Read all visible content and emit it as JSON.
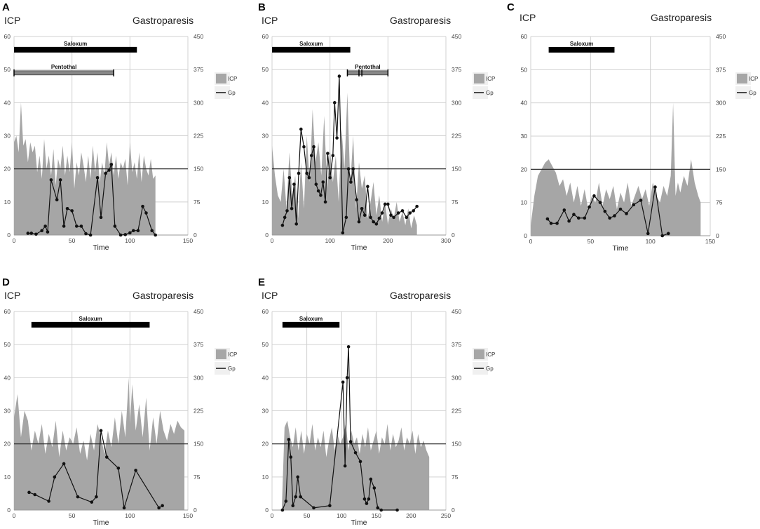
{
  "colors": {
    "area": "#a6a6a6",
    "line": "#111111",
    "grid": "#d0d0d0",
    "threshold": "#222222",
    "bar_dark": "#000000",
    "bar_light": "#888888"
  },
  "chart_data": [
    {
      "panel": "A",
      "type": "area+line",
      "left_title": "ICP",
      "right_title": "Gastroparesis",
      "xlabel": "Time",
      "xlim": [
        0,
        150
      ],
      "xticks": [
        0,
        50,
        100,
        150
      ],
      "ylim_left": [
        0,
        60
      ],
      "yticks_left": [
        0,
        10,
        20,
        30,
        40,
        50,
        60
      ],
      "ylim_right": [
        0,
        450
      ],
      "yticks_right": [
        0,
        75,
        150,
        225,
        300,
        375,
        450
      ],
      "threshold_left": 20,
      "legend": [
        {
          "label": "ICP",
          "kind": "area"
        },
        {
          "label": "Gp",
          "kind": "line"
        }
      ],
      "bars": [
        {
          "label": "Saloxum",
          "start": 0,
          "end": 106,
          "level": 56,
          "style": "dark",
          "ticks": []
        },
        {
          "label": "Pentothal",
          "start": 0,
          "end": 86,
          "level": 49,
          "style": "light",
          "ticks": [
            0,
            86
          ]
        }
      ],
      "icp_area": {
        "x": [
          0,
          2,
          4,
          6,
          8,
          10,
          12,
          14,
          16,
          18,
          20,
          22,
          24,
          26,
          28,
          30,
          32,
          34,
          36,
          38,
          40,
          42,
          44,
          46,
          48,
          50,
          52,
          54,
          56,
          58,
          60,
          62,
          64,
          66,
          68,
          70,
          72,
          74,
          76,
          78,
          80,
          82,
          84,
          86,
          88,
          90,
          92,
          94,
          96,
          98,
          100,
          102,
          104,
          106,
          108,
          110,
          112,
          114,
          116,
          118,
          120,
          122
        ],
        "y": [
          28,
          30,
          25,
          40,
          27,
          29,
          22,
          28,
          25,
          27,
          19,
          24,
          17,
          29,
          20,
          24,
          18,
          26,
          15,
          23,
          20,
          27,
          18,
          24,
          19,
          28,
          14,
          22,
          18,
          25,
          21,
          16,
          24,
          17,
          27,
          19,
          25,
          16,
          22,
          18,
          28,
          21,
          25,
          18,
          24,
          17,
          22,
          20,
          23,
          15,
          28,
          19,
          22,
          17,
          25,
          16,
          24,
          20,
          18,
          23,
          17,
          18
        ]
      },
      "gp_line": {
        "x": [
          12,
          15,
          19,
          24,
          27,
          29,
          32,
          37,
          40,
          43,
          46,
          50,
          54,
          58,
          62,
          66,
          72,
          75,
          79,
          82,
          84,
          87,
          92,
          96,
          100,
          103,
          107,
          111,
          114,
          119,
          122
        ],
        "y": [
          4,
          4,
          2,
          10,
          20,
          7,
          125,
          80,
          125,
          20,
          60,
          55,
          20,
          20,
          3,
          0,
          130,
          40,
          140,
          147,
          160,
          20,
          0,
          1,
          5,
          10,
          10,
          65,
          50,
          10,
          0
        ]
      }
    },
    {
      "panel": "B",
      "type": "area+line",
      "left_title": "ICP",
      "right_title": "Gastroparesis",
      "xlabel": "Time",
      "xlim": [
        0,
        300
      ],
      "xticks": [
        0,
        100,
        200,
        300
      ],
      "ylim_left": [
        0,
        60
      ],
      "yticks_left": [
        0,
        10,
        20,
        30,
        40,
        50,
        60
      ],
      "ylim_right": [
        0,
        450
      ],
      "yticks_right": [
        0,
        75,
        150,
        225,
        300,
        375,
        450
      ],
      "threshold_left": 20,
      "legend": [
        {
          "label": "ICP",
          "kind": "area"
        },
        {
          "label": "Gp",
          "kind": "line"
        }
      ],
      "bars": [
        {
          "label": "Saloxum",
          "start": 0,
          "end": 135,
          "level": 56,
          "style": "dark",
          "ticks": []
        },
        {
          "label": "Pentothal",
          "start": 130,
          "end": 200,
          "level": 49,
          "style": "light",
          "ticks": [
            130,
            150,
            155,
            200
          ]
        }
      ],
      "icp_area": {
        "x": [
          0,
          5,
          10,
          15,
          20,
          25,
          30,
          35,
          40,
          45,
          50,
          55,
          60,
          65,
          70,
          75,
          80,
          85,
          90,
          95,
          100,
          105,
          110,
          115,
          120,
          125,
          130,
          135,
          140,
          145,
          150,
          155,
          160,
          165,
          170,
          175,
          180,
          185,
          190,
          195,
          200,
          205,
          210,
          215,
          220,
          225,
          230,
          235,
          240,
          245,
          250
        ],
        "y": [
          27,
          18,
          12,
          10,
          20,
          8,
          25,
          12,
          18,
          5,
          22,
          8,
          30,
          16,
          38,
          22,
          28,
          18,
          36,
          14,
          26,
          16,
          24,
          10,
          32,
          20,
          43,
          15,
          30,
          8,
          22,
          14,
          18,
          5,
          10,
          16,
          6,
          12,
          4,
          10,
          3,
          8,
          5,
          10,
          4,
          7,
          3,
          8,
          2,
          6,
          3
        ]
      },
      "gp_line": {
        "x": [
          18,
          22,
          26,
          30,
          34,
          38,
          42,
          46,
          50,
          55,
          60,
          64,
          68,
          72,
          76,
          80,
          84,
          88,
          92,
          96,
          100,
          105,
          108,
          112,
          116,
          122,
          128,
          132,
          136,
          140,
          146,
          150,
          155,
          160,
          165,
          170,
          175,
          180,
          185,
          190,
          195,
          200,
          205,
          210,
          218,
          225,
          232,
          238,
          244,
          250
        ],
        "y": [
          22,
          40,
          55,
          130,
          60,
          115,
          25,
          140,
          240,
          200,
          140,
          130,
          180,
          200,
          115,
          100,
          90,
          120,
          75,
          185,
          130,
          180,
          300,
          220,
          360,
          5,
          40,
          150,
          120,
          150,
          80,
          30,
          60,
          45,
          110,
          40,
          30,
          25,
          38,
          50,
          70,
          70,
          45,
          40,
          50,
          55,
          40,
          50,
          55,
          65
        ]
      }
    },
    {
      "panel": "C",
      "type": "area+line",
      "left_title": "ICP",
      "right_title": "Gastroparesis",
      "xlabel": "Time",
      "xlim": [
        0,
        150
      ],
      "xticks": [
        0,
        50,
        100,
        150
      ],
      "ylim_left": [
        0,
        60
      ],
      "yticks_left": [
        0,
        10,
        20,
        30,
        40,
        50,
        60
      ],
      "ylim_right": [
        0,
        450
      ],
      "yticks_right": [
        0,
        75,
        150,
        225,
        300,
        375,
        450
      ],
      "threshold_left": 20,
      "legend": [
        {
          "label": "ICP",
          "kind": "area"
        },
        {
          "label": "Gp",
          "kind": "line"
        }
      ],
      "bars": [
        {
          "label": "Saloxum",
          "start": 15,
          "end": 70,
          "level": 56,
          "style": "dark",
          "ticks": []
        }
      ],
      "icp_area": {
        "x": [
          0,
          3,
          6,
          9,
          12,
          15,
          18,
          21,
          24,
          27,
          30,
          33,
          36,
          39,
          42,
          45,
          48,
          51,
          54,
          57,
          60,
          63,
          66,
          69,
          72,
          75,
          78,
          81,
          84,
          87,
          90,
          93,
          96,
          99,
          102,
          105,
          108,
          111,
          114,
          117,
          119,
          121,
          123,
          125,
          128,
          131,
          134,
          137,
          140,
          142
        ],
        "y": [
          3,
          12,
          18,
          20,
          22,
          23,
          21,
          19,
          15,
          17,
          12,
          16,
          10,
          15,
          9,
          14,
          8,
          12,
          10,
          16,
          9,
          14,
          11,
          15,
          8,
          13,
          10,
          16,
          9,
          12,
          15,
          11,
          14,
          9,
          16,
          12,
          10,
          15,
          12,
          18,
          40,
          12,
          16,
          13,
          18,
          15,
          23,
          16,
          12,
          10
        ]
      },
      "gp_line": {
        "x": [
          14,
          17,
          22,
          28,
          32,
          36,
          40,
          45,
          49,
          53,
          58,
          62,
          66,
          70,
          75,
          80,
          86,
          92,
          98,
          104,
          110,
          115
        ],
        "y": [
          38,
          28,
          28,
          58,
          33,
          48,
          40,
          40,
          65,
          90,
          75,
          55,
          40,
          45,
          60,
          50,
          70,
          80,
          5,
          110,
          0,
          5
        ]
      }
    },
    {
      "panel": "D",
      "type": "area+line",
      "left_title": "ICP",
      "right_title": "Gastroparesis",
      "xlabel": "Time",
      "xlim": [
        0,
        150
      ],
      "xticks": [
        0,
        50,
        100,
        150
      ],
      "ylim_left": [
        0,
        60
      ],
      "yticks_left": [
        0,
        10,
        20,
        30,
        40,
        50,
        60
      ],
      "ylim_right": [
        0,
        450
      ],
      "yticks_right": [
        0,
        75,
        150,
        225,
        300,
        375,
        450
      ],
      "threshold_left": 20,
      "legend": [
        {
          "label": "ICP",
          "kind": "area"
        },
        {
          "label": "Gp",
          "kind": "line"
        }
      ],
      "bars": [
        {
          "label": "Saloxum",
          "start": 15,
          "end": 117,
          "level": 56,
          "style": "dark",
          "ticks": []
        }
      ],
      "icp_area": {
        "x": [
          0,
          3,
          6,
          9,
          12,
          15,
          18,
          21,
          24,
          27,
          30,
          33,
          36,
          39,
          42,
          45,
          48,
          51,
          54,
          57,
          60,
          63,
          66,
          69,
          72,
          75,
          78,
          81,
          84,
          87,
          90,
          93,
          96,
          99,
          100,
          102,
          105,
          108,
          111,
          114,
          117,
          120,
          123,
          126,
          129,
          132,
          135,
          138,
          141,
          144,
          147
        ],
        "y": [
          28,
          35,
          22,
          30,
          27,
          18,
          24,
          20,
          26,
          17,
          23,
          19,
          27,
          16,
          24,
          18,
          22,
          20,
          25,
          17,
          21,
          15,
          23,
          18,
          26,
          22,
          17,
          24,
          19,
          28,
          20,
          30,
          22,
          40,
          26,
          38,
          24,
          32,
          22,
          34,
          18,
          28,
          20,
          30,
          24,
          21,
          26,
          23,
          27,
          25,
          24
        ]
      },
      "gp_line": {
        "x": [
          13,
          18,
          30,
          35,
          43,
          55,
          67,
          71,
          75,
          80,
          90,
          95,
          105,
          125,
          128
        ],
        "y": [
          40,
          35,
          20,
          75,
          105,
          30,
          18,
          30,
          180,
          120,
          95,
          5,
          90,
          5,
          10
        ]
      }
    },
    {
      "panel": "E",
      "type": "area+line",
      "left_title": "ICP",
      "right_title": "Gastroparesis",
      "xlabel": "Time",
      "xlim": [
        0,
        250
      ],
      "xticks": [
        0,
        50,
        100,
        150,
        200,
        250
      ],
      "ylim_left": [
        0,
        60
      ],
      "yticks_left": [
        0,
        10,
        20,
        30,
        40,
        50,
        60
      ],
      "ylim_right": [
        0,
        450
      ],
      "yticks_right": [
        0,
        75,
        150,
        225,
        300,
        375,
        450
      ],
      "threshold_left": 20,
      "legend": [
        {
          "label": "ICP",
          "kind": "area"
        },
        {
          "label": "Gp",
          "kind": "line"
        }
      ],
      "bars": [
        {
          "label": "Saloxum",
          "start": 15,
          "end": 97,
          "level": 56,
          "style": "dark",
          "ticks": []
        }
      ],
      "icp_area": {
        "x": [
          14,
          18,
          22,
          26,
          30,
          34,
          38,
          42,
          46,
          50,
          54,
          58,
          62,
          66,
          70,
          74,
          78,
          82,
          86,
          90,
          94,
          98,
          102,
          106,
          110,
          114,
          118,
          122,
          126,
          130,
          134,
          138,
          142,
          146,
          150,
          154,
          158,
          162,
          166,
          170,
          174,
          178,
          182,
          186,
          190,
          194,
          198,
          202,
          206,
          210,
          214,
          218,
          222,
          226
        ],
        "y": [
          0,
          25,
          27,
          22,
          19,
          25,
          18,
          24,
          17,
          23,
          20,
          26,
          18,
          22,
          19,
          24,
          16,
          21,
          25,
          18,
          23,
          20,
          22,
          26,
          18,
          24,
          20,
          22,
          17,
          23,
          19,
          25,
          18,
          21,
          24,
          17,
          22,
          20,
          26,
          18,
          23,
          19,
          21,
          25,
          18,
          22,
          20,
          24,
          17,
          23,
          19,
          21,
          18,
          16
        ]
      },
      "gp_line": {
        "x": [
          15,
          20,
          24,
          27,
          30,
          34,
          37,
          41,
          60,
          83,
          102,
          105,
          108,
          110,
          113,
          120,
          127,
          133,
          136,
          139,
          142,
          147,
          152,
          157,
          180
        ],
        "y": [
          0,
          20,
          160,
          120,
          10,
          30,
          75,
          30,
          5,
          10,
          290,
          100,
          300,
          370,
          155,
          130,
          110,
          25,
          15,
          25,
          70,
          50,
          5,
          0,
          0
        ]
      }
    }
  ]
}
